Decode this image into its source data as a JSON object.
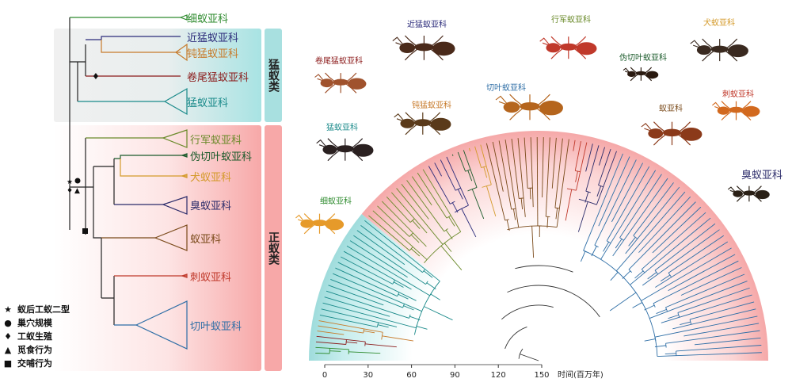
{
  "cladogram": {
    "clades": [
      {
        "id": "leptanillinae",
        "label": "细蚁亚科",
        "color": "#2e8b2e"
      },
      {
        "id": "proceratiinae",
        "label": "近猛蚁亚科",
        "color": "#2b2b7a"
      },
      {
        "id": "amblyoponinae",
        "label": "钝猛蚁亚科",
        "color": "#c77a2a"
      },
      {
        "id": "paraponerinae",
        "label": "卷尾猛蚁亚科",
        "color": "#8b1a1a"
      },
      {
        "id": "ponerinae",
        "label": "猛蚁亚科",
        "color": "#1a8a8a"
      },
      {
        "id": "dorylinae",
        "label": "行军蚁亚科",
        "color": "#6a8a2a"
      },
      {
        "id": "pseudomyrmecinae",
        "label": "伪切叶蚁亚科",
        "color": "#1a5a2a"
      },
      {
        "id": "dolichoderinae_dog",
        "label": "犬蚁亚科",
        "color": "#d49a2a"
      },
      {
        "id": "dolichoderinae",
        "label": "臭蚁亚科",
        "color": "#2b2b6a"
      },
      {
        "id": "formicinae",
        "label": "蚁亚科",
        "color": "#7a4a1a"
      },
      {
        "id": "ectatomminae",
        "label": "刺蚁亚科",
        "color": "#c0392b"
      },
      {
        "id": "myrmicinae",
        "label": "切叶蚁亚科",
        "color": "#2e6ea6"
      }
    ],
    "groups": {
      "poneroid": "猛蚁类",
      "formicoid": "正蚁类"
    }
  },
  "legend": [
    {
      "symbol": "★",
      "label": "蚁后工蚁二型"
    },
    {
      "symbol": "●",
      "label": "巢穴规模"
    },
    {
      "symbol": "♦",
      "label": "工蚁生殖"
    },
    {
      "symbol": "▲",
      "label": "觅食行为"
    },
    {
      "symbol": "■",
      "label": "交哺行为"
    }
  ],
  "ant_photos": [
    {
      "id": "leptanillinae",
      "label": "细蚁亚科",
      "color": "#2e8b2e",
      "body": "#e69a2a"
    },
    {
      "id": "paraponerinae",
      "label": "卷尾猛蚁亚科",
      "color": "#8b1a1a",
      "body": "#a0522d"
    },
    {
      "id": "proceratiinae",
      "label": "近猛蚁亚科",
      "color": "#2b2b7a",
      "body": "#4a2a1a"
    },
    {
      "id": "amblyoponinae",
      "label": "钝猛蚁亚科",
      "color": "#c77a2a",
      "body": "#5a3a1a"
    },
    {
      "id": "ponerinae",
      "label": "猛蚁亚科",
      "color": "#1a8a8a",
      "body": "#2a2020"
    },
    {
      "id": "dorylinae",
      "label": "行军蚁亚科",
      "color": "#6a8a2a",
      "body": "#c0392b"
    },
    {
      "id": "myrmicinae",
      "label": "切叶蚁亚科",
      "color": "#2e6ea6",
      "body": "#b5651d"
    },
    {
      "id": "pseudomyrmecinae",
      "label": "伪切叶蚁亚科",
      "color": "#1a5a2a",
      "body": "#2a1a10"
    },
    {
      "id": "dolichoderinae_dog",
      "label": "犬蚁亚科",
      "color": "#d49a2a",
      "body": "#3a2a20"
    },
    {
      "id": "formicinae",
      "label": "蚁亚科",
      "color": "#7a4a1a",
      "body": "#8b3a1a"
    },
    {
      "id": "ectatomminae",
      "label": "刺蚁亚科",
      "color": "#c0392b",
      "body": "#d2691e"
    },
    {
      "id": "dolichoderinae",
      "label": "臭蚁亚科",
      "color": "#2b2b6a",
      "body": "#2a2016"
    }
  ],
  "timescale": {
    "ticks": [
      "0",
      "30",
      "60",
      "90",
      "120",
      "150"
    ],
    "label": "时间(百万年)"
  }
}
